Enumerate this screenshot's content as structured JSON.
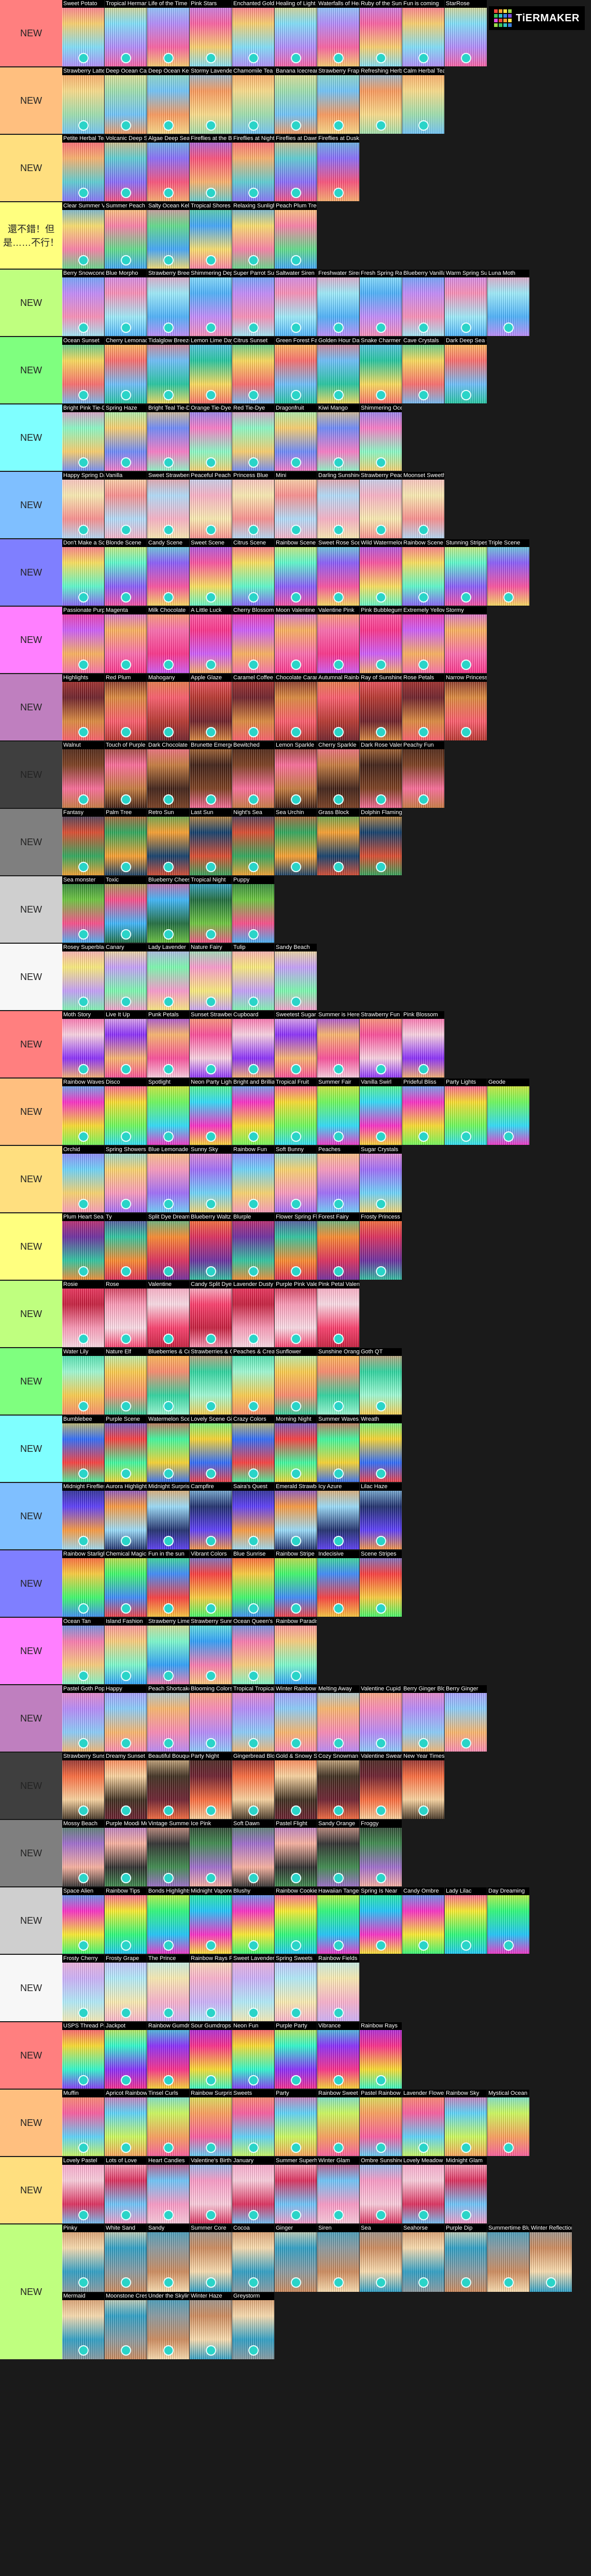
{
  "logo": {
    "text": "TiERMAKER",
    "grid_colors": [
      "#f3473c",
      "#f9a234",
      "#fbe34a",
      "#9bd84b",
      "#3fc35a",
      "#33c2c3",
      "#3a7fe0",
      "#7d4be0",
      "#e04be0",
      "#f3473c",
      "#f9a234",
      "#fbe34a",
      "#9bd84b",
      "#3fc35a",
      "#33c2c3",
      "#3a7fe0"
    ]
  },
  "tiers": [
    {
      "label": "NEW",
      "color": "#ff7f7f",
      "items": [
        "Sweet Potato",
        "Tropical Hermann Light",
        "Life of the Time",
        "Pink Stars",
        "Enchanted Golden Flower",
        "Healing of Light",
        "Waterfalls of Healing",
        "Ruby of the Sunlight",
        "Fun is coming",
        "StarRose"
      ]
    },
    {
      "label": "NEW",
      "color": "#ffbf7f",
      "items": [
        "Strawberry Latte",
        "Deep Ocean Cave",
        "Deep Ocean Kelp",
        "Stormy Lavender",
        "Chamomile Tea",
        "Banana Icecream",
        "Strawberry Frappe",
        "Refreshing Herbal Tea",
        "Calm Herbal Tea"
      ]
    },
    {
      "label": "NEW",
      "color": "#ffdf7f",
      "items": [
        "Petite Herbal Tea",
        "Volcanic Deep Sea Coral Reef",
        "Algae Deep Sea Coral Reef",
        "Fireflies at the Beach",
        "Fireflies at Night",
        "Fireflies at Dawn",
        "Fireflies at Dusk"
      ]
    },
    {
      "label": "還不錯！但是……不行！",
      "color": "#ffff7f",
      "items": [
        "Clear Summer View",
        "Summer Peach",
        "Salty Ocean Kelp",
        "Tropical Shores",
        "Relaxing Sunlight",
        "Peach Plum Tree"
      ]
    },
    {
      "label": "NEW",
      "color": "#bfff7f",
      "items": [
        "Berry Snowcone",
        "Blue Morpho",
        "Strawberry Breeze",
        "Shimmering Depths",
        "Super Parrot Summer",
        "Saltwater Siren",
        "Freshwater Siren",
        "Fresh Spring Rain",
        "Blueberry Vanilla Parfait",
        "Warm Spring Sunrise",
        "Luna Moth"
      ]
    },
    {
      "label": "NEW",
      "color": "#7fff7f",
      "items": [
        "Ocean Sunset",
        "Cherry Lemonade",
        "Tidalglow Breeze",
        "Lemon Lime Daydream",
        "Citrus Sunset",
        "Green Forest Fairydust",
        "Golden Hour Daydream",
        "Snake Charmer",
        "Cave Crystals",
        "Dark Deep Sea Coral Reef"
      ]
    },
    {
      "label": "NEW",
      "color": "#7fffff",
      "items": [
        "Bright Pink Tie-Dye",
        "Spring Haze",
        "Bright Teal Tie-Dye",
        "Orange Tie-Dye",
        "Red Tie-Dye",
        "Dragonfruit",
        "Kiwi Mango",
        "Shimmering Ocean Sunset"
      ]
    },
    {
      "label": "NEW",
      "color": "#7fbfff",
      "items": [
        "Happy Spring Day",
        "Vanilla",
        "Sweet Strawberry Shimmer",
        "Peaceful Peach",
        "Princess Blue",
        "Mini",
        "Darling Sunshine",
        "Strawberry Peach",
        "Moonset Sweetheart"
      ]
    },
    {
      "label": "NEW",
      "color": "#7f7fff",
      "items": [
        "Don't Make a Scene",
        "Blonde Scene",
        "Candy Scene",
        "Sweet Scene",
        "Citrus Scene",
        "Rainbow Scene",
        "Sweet Rose Scene",
        "Wild Watermelon",
        "Rainbow Scene Mix",
        "Stunning Stripes",
        "Triple Scene"
      ]
    },
    {
      "label": "NEW",
      "color": "#ff7fff",
      "items": [
        "Passionate Purple",
        "Magenta",
        "Milk Chocolate",
        "A Little Luck",
        "Cherry Blossom",
        "Moon Valentine Pink",
        "Valentine Pink",
        "Pink Bubblegum",
        "Extremely Yellow",
        "Stormy"
      ]
    },
    {
      "label": "NEW",
      "color": "#bf7fbf",
      "items": [
        "Highlights",
        "Red Plum",
        "Mahogany",
        "Apple Glaze",
        "Caramel Coffee",
        "Chocolate Caramel",
        "Autumnal Rainbow",
        "Ray of Sunshine",
        "Rose Petals",
        "Narrow Princess"
      ]
    },
    {
      "label": "NEW",
      "color": "#3f3f3f",
      "items": [
        "Walnut",
        "Touch of Purple",
        "Dark Chocolate",
        "Brunette Emerger",
        "Bewitched",
        "Lemon Sparkle",
        "Cherry Sparkle",
        "Dark Rose Valentine",
        "Peachy Fun"
      ]
    },
    {
      "label": "NEW",
      "color": "#7f7f7f",
      "items": [
        "Fantasy",
        "Palm Tree",
        "Retro Sun",
        "Last Sun",
        "Night's Sea",
        "Sea Urchin",
        "Grass Block",
        "Dolphin Flamingo"
      ]
    },
    {
      "label": "NEW",
      "color": "#cfcfcf",
      "items": [
        "Sea monster",
        "Toxic",
        "Blueberry Cheesecake",
        "Tropical Night",
        "Puppy"
      ]
    },
    {
      "label": "NEW",
      "color": "#f7f7f7",
      "items": [
        "Rosey Superblade",
        "Canary",
        "Lady Lavender",
        "Nature Fairy",
        "Tulip",
        "Sandy Beach"
      ]
    },
    {
      "label": "NEW",
      "color": "#ff7f7f",
      "items": [
        "Moth Story",
        "Live It Up",
        "Punk Petals",
        "Sunset Strawberry Latte",
        "Cupboard",
        "Sweetest Sugar",
        "Summer is Here",
        "Strawberry Fun Land",
        "Pink Blossom"
      ]
    },
    {
      "label": "NEW",
      "color": "#ffbf7f",
      "items": [
        "Rainbow Waves",
        "Disco",
        "Spotlight",
        "Neon Party Lights",
        "Bright and Brilliant",
        "Tropical Fruit",
        "Summer Fair",
        "Vanilla Swirl",
        "Prideful Bliss",
        "Party Lights",
        "Geode"
      ]
    },
    {
      "label": "NEW",
      "color": "#ffdf7f",
      "items": [
        "Orchid",
        "Spring Showers",
        "Blue Lemonade",
        "Sunny Sky",
        "Rainbow Fun",
        "Soft Bunny",
        "Peaches",
        "Sugar Crystals"
      ]
    },
    {
      "label": "NEW",
      "color": "#ffff7f",
      "items": [
        "Plum Heart Sea Coral Reef",
        "Ty",
        "Split Dye Dream",
        "Blueberry Waltz",
        "Blurple",
        "Flower Spring Flowers",
        "Forest Fairy",
        "Frosty Princess"
      ]
    },
    {
      "label": "NEW",
      "color": "#bfff7f",
      "items": [
        "Rosie",
        "Rose",
        "Valentine",
        "Candy Split Dye",
        "Lavender Dusty Rose",
        "Purple Pink Valentine",
        "Pink Petal Valentine"
      ]
    },
    {
      "label": "NEW",
      "color": "#7fff7f",
      "items": [
        "Water Lily",
        "Nature Elf",
        "Blueberries & Cream",
        "Strawberries & Cream",
        "Peaches & Cream",
        "Sunflower",
        "Sunshine Orange",
        "Goth QT"
      ]
    },
    {
      "label": "NEW",
      "color": "#7fffff",
      "items": [
        "Bumblebee",
        "Purple Scene",
        "Watermelon Scene",
        "Lovely Scene Girl",
        "Crazy Colors",
        "Morning Night",
        "Summer Waves",
        "Wreath"
      ]
    },
    {
      "label": "NEW",
      "color": "#7fbfff",
      "items": [
        "Midnight Fireflies",
        "Aurora Highlights",
        "Midnight Surprise",
        "Campfire",
        "Saira's Quest",
        "Emerald Strawberry",
        "Icy Azure",
        "Lilac Haze"
      ]
    },
    {
      "label": "NEW",
      "color": "#7f7fff",
      "items": [
        "Rainbow Starlight",
        "Chemical Magic",
        "Fun in the sun",
        "Vibrant Colors",
        "Blue Sunrise",
        "Rainbow Stripe",
        "Indecisive",
        "Scene Stripes"
      ]
    },
    {
      "label": "NEW",
      "color": "#ff7fff",
      "items": [
        "Ocean Tan",
        "Island Fashion",
        "Strawberry Limeade",
        "Strawberry Sunrise",
        "Ocean Queen's Crown",
        "Rainbow Paradise"
      ]
    },
    {
      "label": "NEW",
      "color": "#bf7fbf",
      "items": [
        "Pastel Goth Popstar",
        "Happy",
        "Peach Shortcake",
        "Blooming Colors",
        "Tropical Tropical",
        "Winter Rainbow",
        "Melting Away",
        "Valentine Cupid",
        "Berry Ginger Blonde",
        "Berry Ginger"
      ]
    },
    {
      "label": "NEW",
      "color": "#3f3f3f",
      "items": [
        "Strawberry Sunset Ombre",
        "Dreamy Sunset Evening Sunset",
        "Beautiful Bouquet",
        "Party Night",
        "Gingerbread Blondes",
        "Gold & Snowy Surprise",
        "Cozy Snowman & Hot Cocoa",
        "Valentine Swear",
        "New Year Times"
      ]
    },
    {
      "label": "NEW",
      "color": "#7f7f7f",
      "items": [
        "Mossy Beach",
        "Purple Moodi Moon",
        "Vintage Summer",
        "Ice Pink",
        "Soft Dawn",
        "Pastel Flight",
        "Sandy Orange",
        "Froggy"
      ]
    },
    {
      "label": "NEW",
      "color": "#cfcfcf",
      "items": [
        "Space Alien",
        "Rainbow Tips",
        "Bonds Highlights",
        "Midnight Vaporwave",
        "Blushy",
        "Rainbow Cookie",
        "Hawaiian Tangerine",
        "Spring Is Near",
        "Candy Ombre",
        "Lady Lilac",
        "Day Dreaming"
      ]
    },
    {
      "label": "NEW",
      "color": "#f7f7f7",
      "items": [
        "Frosty Cherry",
        "Frosty Grape",
        "The Prince",
        "Rainbow Rays Flame",
        "Sweet Lavender",
        "Spring Sweets",
        "Rainbow Fields"
      ]
    },
    {
      "label": "NEW",
      "color": "#ff7f7f",
      "items": [
        "USPS Thread Parts",
        "Jackpot",
        "Rainbow Gumdrop",
        "Sour Gumdrops",
        "Neon Fun",
        "Purple Party",
        "Vibrance",
        "Rainbow Rays"
      ]
    },
    {
      "label": "NEW",
      "color": "#ffbf7f",
      "items": [
        "Muffin",
        "Apricot Rainbow",
        "Tinsel Curls",
        "Rainbow Surprise",
        "Sweets",
        "Party",
        "Rainbow Sweet",
        "Pastel Rainbow Sunset",
        "Lavender Flower",
        "Rainbow Sky",
        "Mystical Ocean Sunset"
      ]
    },
    {
      "label": "NEW",
      "color": "#ffdf7f",
      "items": [
        "Lovely Pastel",
        "Lots of Love",
        "Heart Candies",
        "Valentine's Birthday Party",
        "January",
        "Summer Superhero",
        "Winter Glam",
        "Ombre Sunshine",
        "Lovely Meadow",
        "Midnight Glam"
      ]
    },
    {
      "label": "NEW",
      "color": "#bfff7f",
      "items": [
        "Pinky",
        "White Sand",
        "Sandy",
        "Summer Core",
        "Cocoa",
        "Ginger",
        "Siren",
        "Sea",
        "Seahorse",
        "Purple Dip",
        "Summertime Blues",
        "Winter Reflection",
        "Mermaid",
        "Moonstone Crest",
        "Under the Skyline",
        "Winter Haze",
        "Greystorm"
      ]
    }
  ]
}
